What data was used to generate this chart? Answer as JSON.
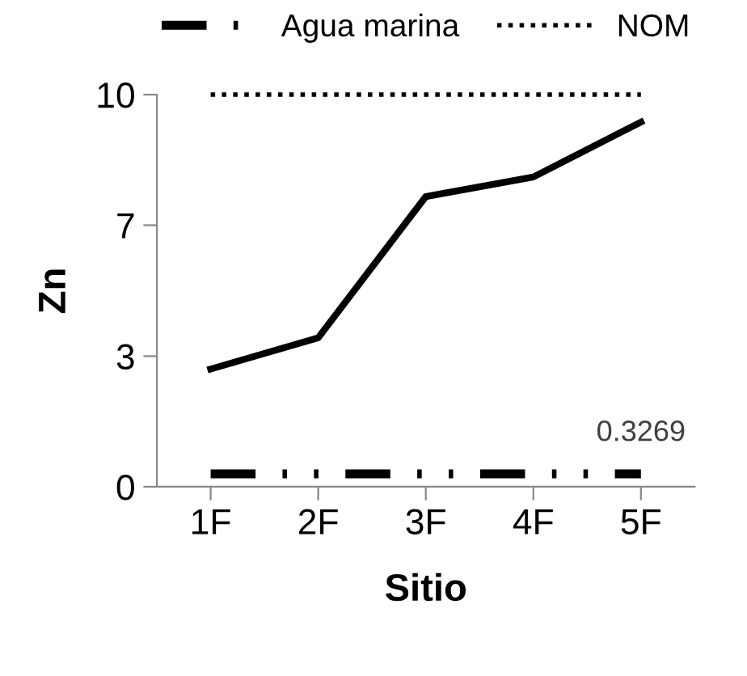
{
  "chart_data": {
    "type": "line",
    "xlabel": "Sitio",
    "ylabel": "Zn",
    "categories": [
      "1F",
      "2F",
      "3F",
      "4F",
      "5F"
    ],
    "series": [
      {
        "color": "#000000",
        "values": [
          3.0,
          3.8,
          7.4,
          7.9,
          9.3
        ],
        "line_style": "solid"
      },
      {
        "name": "Agua marina",
        "color": "#000000",
        "values": [
          0.3269,
          0.3269,
          0.3269,
          0.3269,
          0.3269
        ],
        "line_style": "dashdotdot",
        "value_labels": [
          null,
          null,
          null,
          null,
          "0.3269"
        ]
      },
      {
        "name": "NOM",
        "color": "#000000",
        "values": [
          10,
          10,
          10,
          10,
          10
        ],
        "line_style": "dotted"
      }
    ],
    "ylim": [
      0,
      10
    ],
    "yticks": [
      0,
      {
        "value": 3.33,
        "label": "3"
      },
      {
        "value": 6.67,
        "label": "7"
      },
      10
    ],
    "grid": false,
    "legend": "top",
    "marker": "none"
  }
}
